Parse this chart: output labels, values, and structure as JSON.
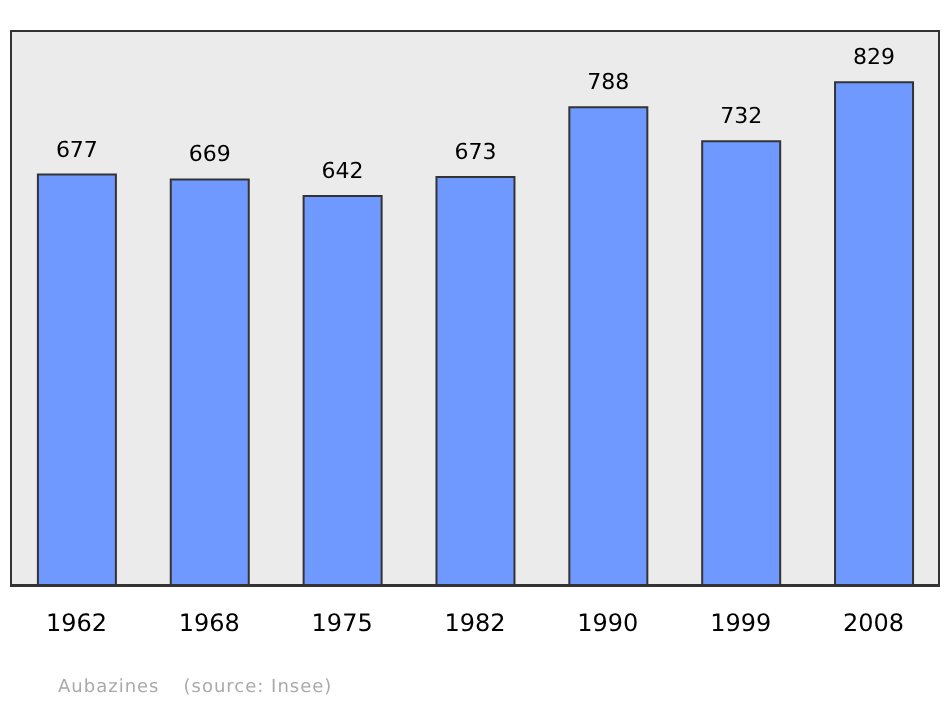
{
  "chart_data": {
    "type": "bar",
    "categories": [
      "1962",
      "1968",
      "1975",
      "1982",
      "1990",
      "1999",
      "2008"
    ],
    "values": [
      677,
      669,
      642,
      673,
      788,
      732,
      829
    ],
    "color": "#7099ff",
    "ylim": [
      0,
      915
    ],
    "data_labels": true,
    "annotations": [
      "Aubazines",
      "(source: Insee)"
    ]
  }
}
